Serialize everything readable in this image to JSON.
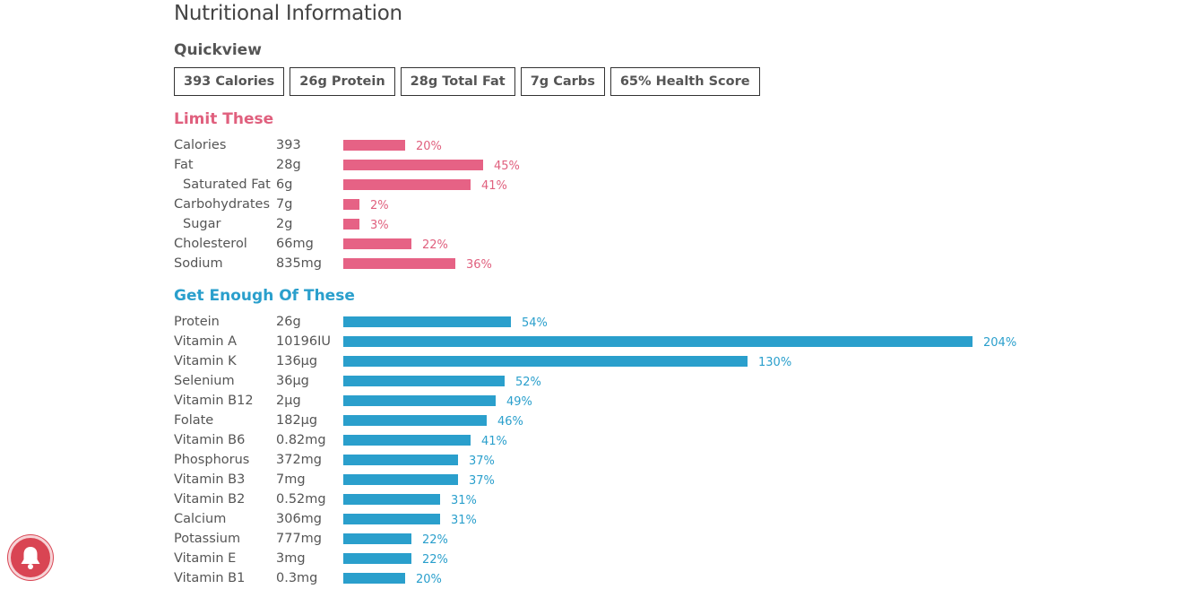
{
  "title": "Nutritional Information",
  "quickview": {
    "heading": "Quickview",
    "badges": [
      "393 Calories",
      "26g Protein",
      "28g Total Fat",
      "7g Carbs",
      "65% Health Score"
    ]
  },
  "limit": {
    "heading": "Limit These",
    "color": "#e66285",
    "items": [
      {
        "name": "Calories",
        "amount": "393",
        "percent": 20,
        "label": "20%",
        "sub": false
      },
      {
        "name": "Fat",
        "amount": "28g",
        "percent": 45,
        "label": "45%",
        "sub": false
      },
      {
        "name": "Saturated Fat",
        "amount": "6g",
        "percent": 41,
        "label": "41%",
        "sub": true
      },
      {
        "name": "Carbohydrates",
        "amount": "7g",
        "percent": 2,
        "label": "2%",
        "sub": false
      },
      {
        "name": "Sugar",
        "amount": "2g",
        "percent": 3,
        "label": "3%",
        "sub": true
      },
      {
        "name": "Cholesterol",
        "amount": "66mg",
        "percent": 22,
        "label": "22%",
        "sub": false
      },
      {
        "name": "Sodium",
        "amount": "835mg",
        "percent": 36,
        "label": "36%",
        "sub": false
      }
    ]
  },
  "enough": {
    "heading": "Get Enough Of These",
    "color": "#2a9fcc",
    "items": [
      {
        "name": "Protein",
        "amount": "26g",
        "percent": 54,
        "label": "54%"
      },
      {
        "name": "Vitamin A",
        "amount": "10196IU",
        "percent": 204,
        "label": "204%"
      },
      {
        "name": "Vitamin K",
        "amount": "136µg",
        "percent": 130,
        "label": "130%"
      },
      {
        "name": "Selenium",
        "amount": "36µg",
        "percent": 52,
        "label": "52%"
      },
      {
        "name": "Vitamin B12",
        "amount": "2µg",
        "percent": 49,
        "label": "49%"
      },
      {
        "name": "Folate",
        "amount": "182µg",
        "percent": 46,
        "label": "46%"
      },
      {
        "name": "Vitamin B6",
        "amount": "0.82mg",
        "percent": 41,
        "label": "41%"
      },
      {
        "name": "Phosphorus",
        "amount": "372mg",
        "percent": 37,
        "label": "37%"
      },
      {
        "name": "Vitamin B3",
        "amount": "7mg",
        "percent": 37,
        "label": "37%"
      },
      {
        "name": "Vitamin B2",
        "amount": "0.52mg",
        "percent": 31,
        "label": "31%"
      },
      {
        "name": "Calcium",
        "amount": "306mg",
        "percent": 31,
        "label": "31%"
      },
      {
        "name": "Potassium",
        "amount": "777mg",
        "percent": 22,
        "label": "22%"
      },
      {
        "name": "Vitamin E",
        "amount": "3mg",
        "percent": 22,
        "label": "22%"
      },
      {
        "name": "Vitamin B1",
        "amount": "0.3mg",
        "percent": 20,
        "label": "20%"
      }
    ]
  },
  "notification": {
    "icon": "bell-icon",
    "color": "#d94553"
  }
}
